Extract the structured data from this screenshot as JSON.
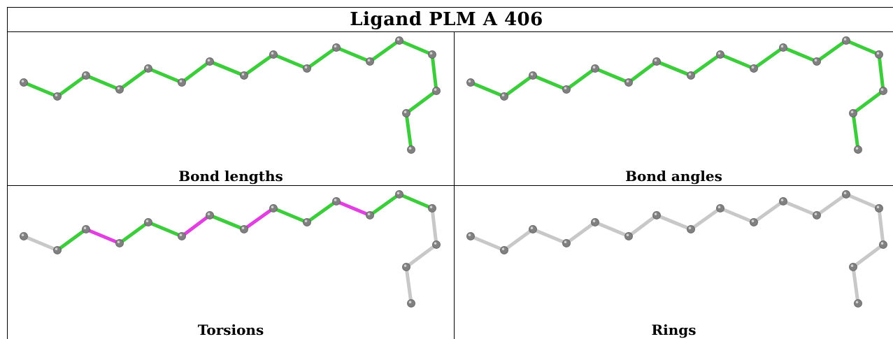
{
  "title": "Ligand PLM A 406",
  "panels": [
    {
      "caption": "Bond lengths",
      "bond_colors": [
        "g",
        "g",
        "g",
        "g",
        "g",
        "g",
        "g",
        "g",
        "g",
        "g",
        "g",
        "g",
        "g",
        "g",
        "g",
        "g"
      ]
    },
    {
      "caption": "Bond angles",
      "bond_colors": [
        "g",
        "g",
        "g",
        "g",
        "g",
        "g",
        "g",
        "g",
        "g",
        "g",
        "g",
        "g",
        "g",
        "g",
        "g",
        "g"
      ]
    },
    {
      "caption": "Torsions",
      "bond_colors": [
        "w",
        "g",
        "m",
        "g",
        "g",
        "m",
        "g",
        "m",
        "g",
        "g",
        "m",
        "g",
        "g",
        "w",
        "w",
        "w"
      ]
    },
    {
      "caption": "Rings",
      "bond_colors": [
        "w",
        "w",
        "w",
        "w",
        "w",
        "w",
        "w",
        "w",
        "w",
        "w",
        "w",
        "w",
        "w",
        "w",
        "w",
        "w"
      ]
    }
  ],
  "colors": {
    "g": "#3ccc3c",
    "m": "#e040e0",
    "w": "#c8c8c8",
    "atom": "#808080",
    "atom_highlight": "#d0d0d0"
  }
}
